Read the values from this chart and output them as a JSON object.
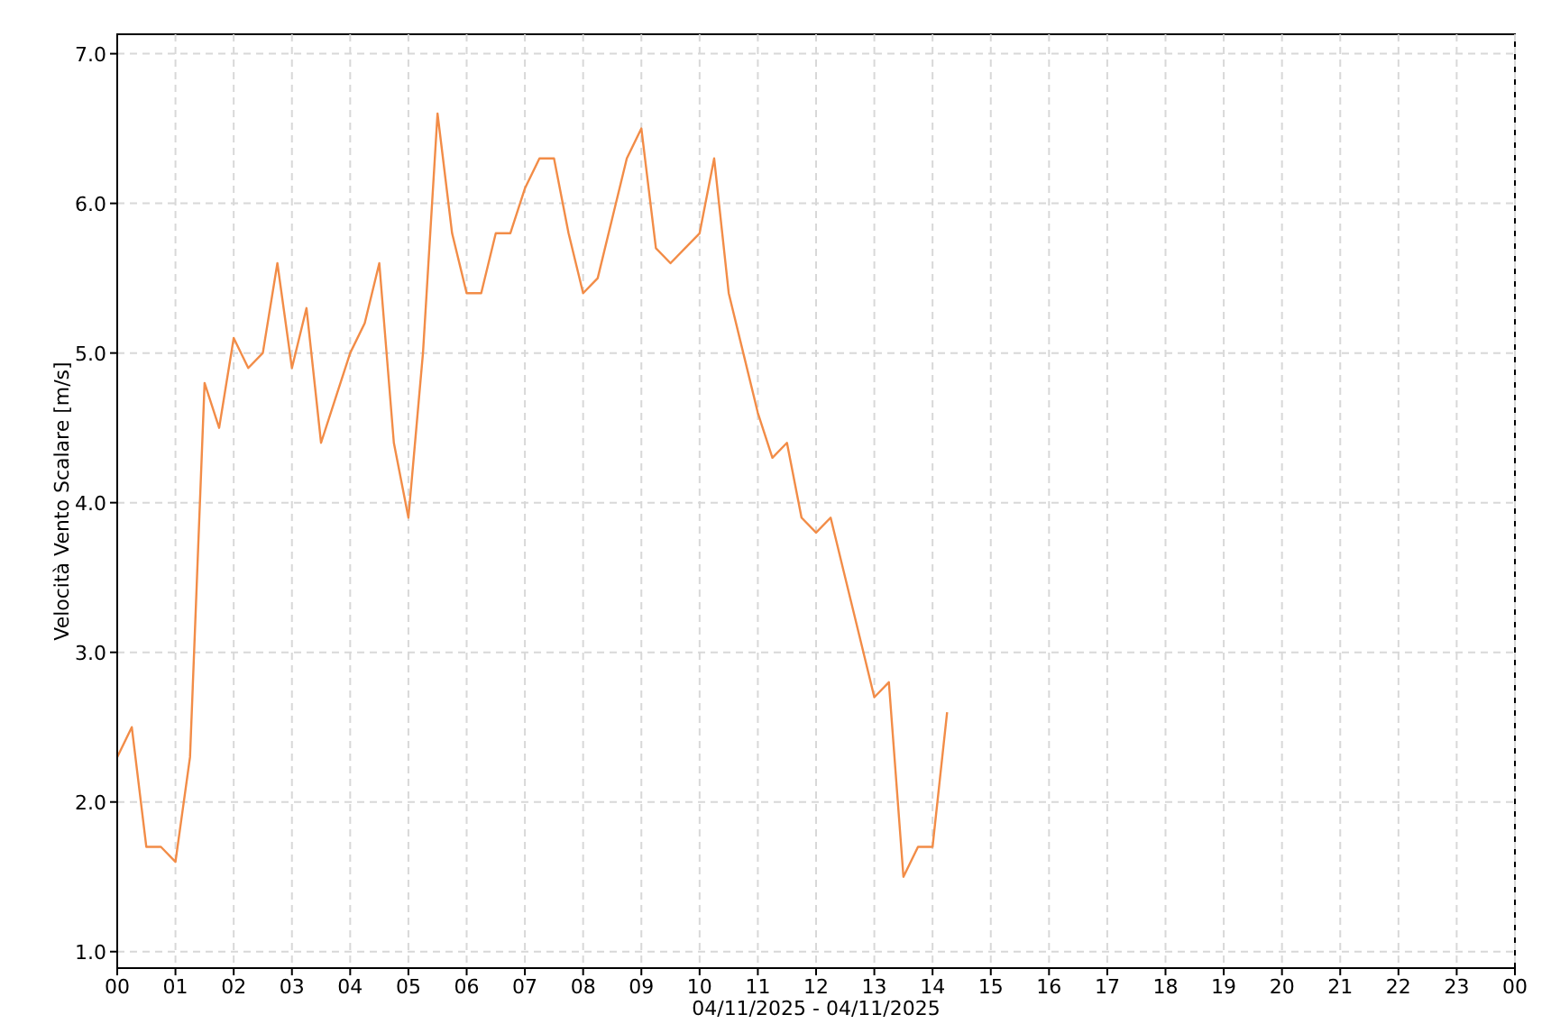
{
  "chart_data": {
    "type": "line",
    "xlabel": "04/11/2025 - 04/11/2025",
    "ylabel": "Velocità Vento Scalare [m/s]",
    "x": [
      0,
      0.25,
      0.5,
      0.75,
      1,
      1.25,
      1.5,
      1.75,
      2,
      2.25,
      2.5,
      2.75,
      3,
      3.25,
      3.5,
      3.75,
      4,
      4.25,
      4.5,
      4.75,
      5,
      5.25,
      5.5,
      5.75,
      6,
      6.25,
      6.5,
      6.75,
      7,
      7.25,
      7.5,
      7.75,
      8,
      8.25,
      8.5,
      8.75,
      9,
      9.25,
      9.5,
      9.75,
      10,
      10.25,
      10.5,
      10.75,
      11,
      11.25,
      11.5,
      11.75,
      12,
      12.25,
      12.5,
      12.75,
      13,
      13.25,
      13.5,
      13.75,
      14,
      14.25
    ],
    "series": [
      {
        "color": "#f28c47",
        "values": [
          2.3,
          2.5,
          1.7,
          1.7,
          1.6,
          2.3,
          4.8,
          4.5,
          5.1,
          4.9,
          5.0,
          5.6,
          4.9,
          5.3,
          4.4,
          4.7,
          5.0,
          5.2,
          5.6,
          4.4,
          3.9,
          5.0,
          6.6,
          5.8,
          5.4,
          5.4,
          5.8,
          5.8,
          6.1,
          6.3,
          6.3,
          5.8,
          5.4,
          5.5,
          5.9,
          6.3,
          6.5,
          5.7,
          5.6,
          5.7,
          5.8,
          6.3,
          5.4,
          5.0,
          4.6,
          4.3,
          4.4,
          3.9,
          3.8,
          3.9,
          3.5,
          3.1,
          2.7,
          2.8,
          1.5,
          1.7,
          1.7,
          2.6
        ]
      }
    ],
    "xlim": [
      0,
      24
    ],
    "xticks": [
      {
        "value": 0,
        "label": "00"
      },
      {
        "value": 1,
        "label": "01"
      },
      {
        "value": 2,
        "label": "02"
      },
      {
        "value": 3,
        "label": "03"
      },
      {
        "value": 4,
        "label": "04"
      },
      {
        "value": 5,
        "label": "05"
      },
      {
        "value": 6,
        "label": "06"
      },
      {
        "value": 7,
        "label": "07"
      },
      {
        "value": 8,
        "label": "08"
      },
      {
        "value": 9,
        "label": "09"
      },
      {
        "value": 10,
        "label": "10"
      },
      {
        "value": 11,
        "label": "11"
      },
      {
        "value": 12,
        "label": "12"
      },
      {
        "value": 13,
        "label": "13"
      },
      {
        "value": 14,
        "label": "14"
      },
      {
        "value": 15,
        "label": "15"
      },
      {
        "value": 16,
        "label": "16"
      },
      {
        "value": 17,
        "label": "17"
      },
      {
        "value": 18,
        "label": "18"
      },
      {
        "value": 19,
        "label": "19"
      },
      {
        "value": 20,
        "label": "20"
      },
      {
        "value": 21,
        "label": "21"
      },
      {
        "value": 22,
        "label": "22"
      },
      {
        "value": 23,
        "label": "23"
      },
      {
        "value": 24,
        "label": "00"
      }
    ],
    "ylim": [
      0.89,
      7.13
    ],
    "yticks": [
      {
        "value": 1,
        "label": "1.0"
      },
      {
        "value": 2,
        "label": "2.0"
      },
      {
        "value": 3,
        "label": "3.0"
      },
      {
        "value": 4,
        "label": "4.0"
      },
      {
        "value": 5,
        "label": "5.0"
      },
      {
        "value": 6,
        "label": "6.0"
      },
      {
        "value": 7,
        "label": "7.0"
      }
    ],
    "grid": true,
    "marker": "none",
    "line_style": "solid"
  }
}
